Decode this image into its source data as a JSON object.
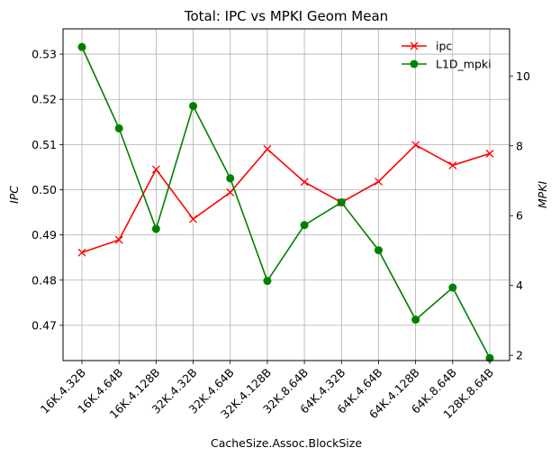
{
  "chart_data": {
    "type": "line",
    "title": "Total: IPC vs MPKI Geom Mean",
    "xlabel": "CacheSize.Assoc.BlockSize",
    "ylabel_left": "IPC",
    "ylabel_right": "MPKI",
    "categories": [
      "16K.4.32B",
      "16K.4.64B",
      "16K.4.128B",
      "32K.4.32B",
      "32K.4.64B",
      "32K.4.128B",
      "32K.8.64B",
      "64K.4.32B",
      "64K.4.64B",
      "64K.4.128B",
      "64K.8.64B",
      "128K.8.64B"
    ],
    "ylim_left": [
      0.4622,
      0.5356
    ],
    "ylim_right": [
      1.85,
      11.35
    ],
    "yticks_left": [
      "0.47",
      "0.48",
      "0.49",
      "0.50",
      "0.51",
      "0.52",
      "0.53"
    ],
    "yticks_right": [
      "2",
      "4",
      "6",
      "8",
      "10"
    ],
    "grid": true,
    "legend_position": "top-right",
    "series": [
      {
        "name": "ipc",
        "axis": "left",
        "color": "#ff0000",
        "marker": "x",
        "values": [
          0.4861,
          0.4889,
          0.5045,
          0.4935,
          0.4994,
          0.509,
          0.5017,
          0.4972,
          0.5018,
          0.5099,
          0.5054,
          0.508
        ]
      },
      {
        "name": "L1D_mpki",
        "axis": "right",
        "color": "#008000",
        "marker": "circle",
        "values": [
          10.83,
          8.5,
          5.62,
          9.14,
          7.07,
          4.13,
          5.73,
          6.38,
          5.01,
          3.02,
          3.94,
          1.92
        ]
      }
    ]
  }
}
